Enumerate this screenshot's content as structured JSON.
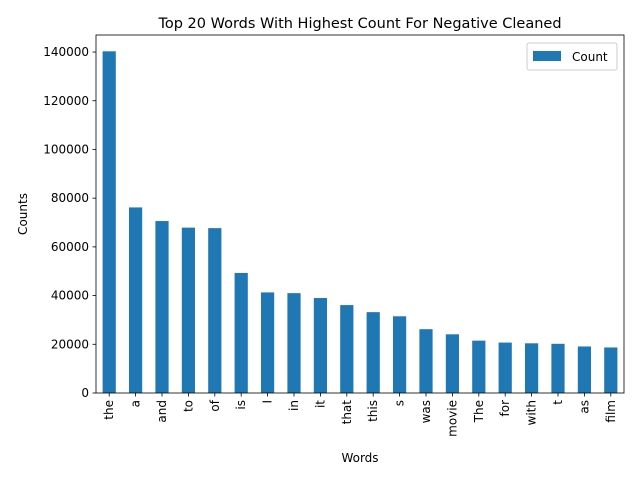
{
  "chart_data": {
    "type": "bar",
    "title": "Top 20 Words With Highest Count For Negative Cleaned",
    "xlabel": "Words",
    "ylabel": "Counts",
    "ylim": [
      0,
      147000
    ],
    "yticks": [
      0,
      20000,
      40000,
      60000,
      80000,
      100000,
      120000,
      140000
    ],
    "categories": [
      "the",
      "a",
      "and",
      "to",
      "of",
      "is",
      "I",
      "in",
      "it",
      "that",
      "this",
      "s",
      "was",
      "movie",
      "The",
      "for",
      "with",
      "t",
      "as",
      "film"
    ],
    "series": [
      {
        "name": "Count",
        "color": "#1f77b4",
        "values": [
          140300,
          76200,
          70600,
          67900,
          67700,
          49300,
          41300,
          41000,
          39000,
          36100,
          33200,
          31500,
          26200,
          24100,
          21500,
          20700,
          20400,
          20200,
          19100,
          18700
        ]
      }
    ],
    "legend": {
      "position": "top-right"
    },
    "grid": false
  }
}
